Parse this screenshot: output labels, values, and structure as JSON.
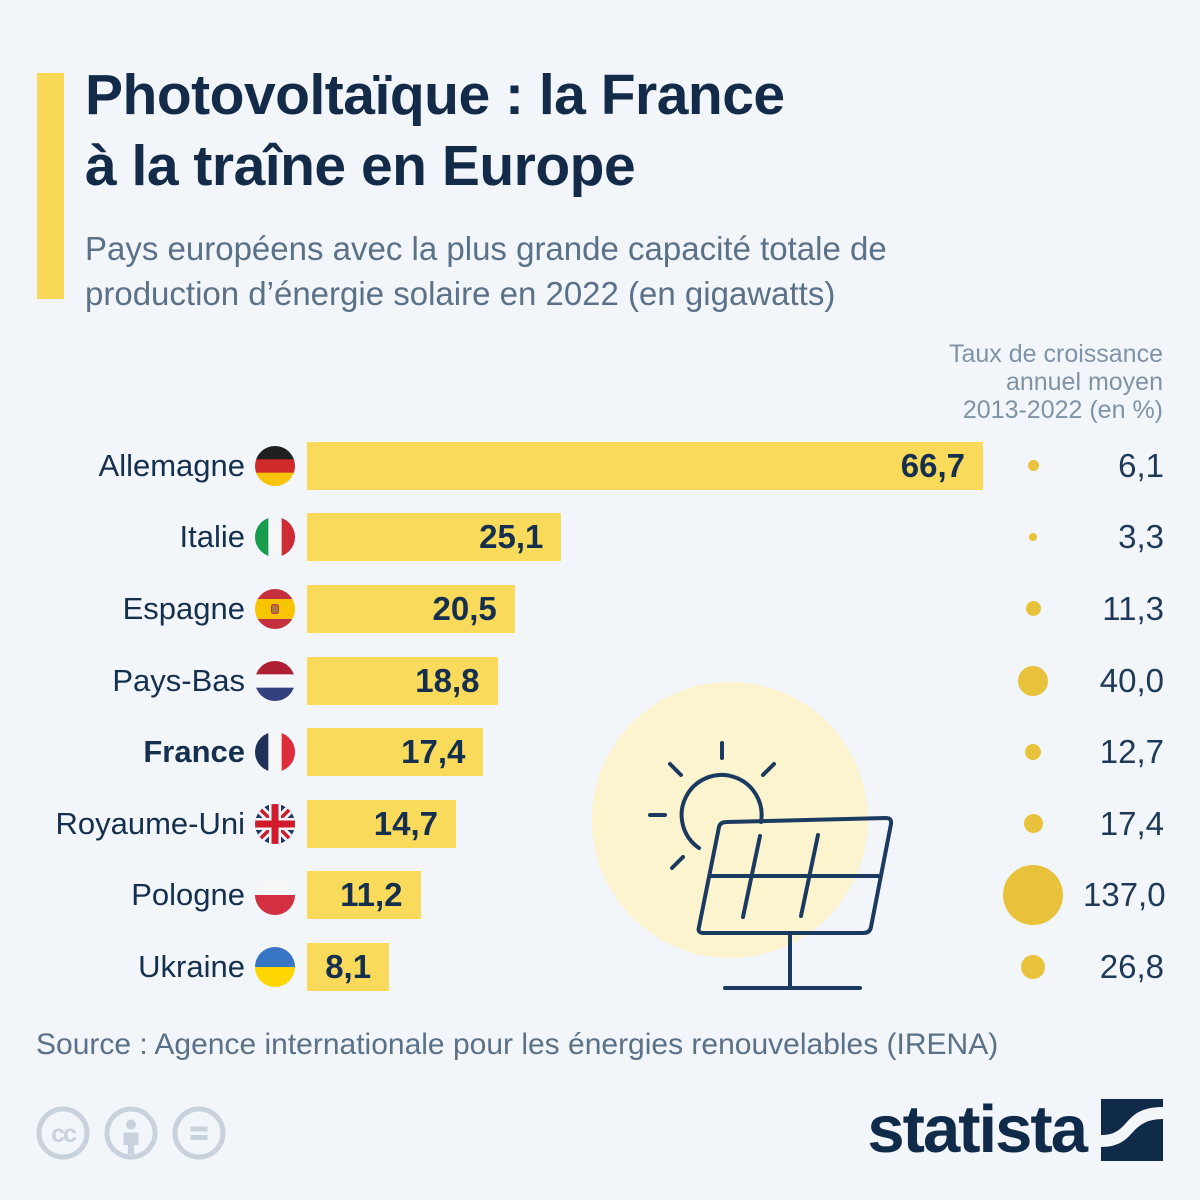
{
  "header": {
    "title": "Photovoltaïque : la France\nà la traîne en Europe",
    "subtitle": "Pays européens avec la plus grande capacité totale de\nproduction d’énergie solaire en 2022 (en gigawatts)",
    "growth_column_header": "Taux de croissance\nannuel moyen\n2013-2022 (en %)"
  },
  "chart": {
    "bar_max": 66.7,
    "bar_color": "#F9DA5B",
    "dot_color": "#E9C23B",
    "rows": [
      {
        "country": "Allemagne",
        "flag": "germany-flag-icon",
        "capacity": 66.7,
        "capacity_label": "66,7",
        "growth": 6.1,
        "growth_label": "6,1",
        "bold": false
      },
      {
        "country": "Italie",
        "flag": "italy-flag-icon",
        "capacity": 25.1,
        "capacity_label": "25,1",
        "growth": 3.3,
        "growth_label": "3,3",
        "bold": false
      },
      {
        "country": "Espagne",
        "flag": "spain-flag-icon",
        "capacity": 20.5,
        "capacity_label": "20,5",
        "growth": 11.3,
        "growth_label": "11,3",
        "bold": false
      },
      {
        "country": "Pays-Bas",
        "flag": "netherlands-flag-icon",
        "capacity": 18.8,
        "capacity_label": "18,8",
        "growth": 40.0,
        "growth_label": "40,0",
        "bold": false
      },
      {
        "country": "France",
        "flag": "france-flag-icon",
        "capacity": 17.4,
        "capacity_label": "17,4",
        "growth": 12.7,
        "growth_label": "12,7",
        "bold": true
      },
      {
        "country": "Royaume-Uni",
        "flag": "united-kingdom-flag-icon",
        "capacity": 14.7,
        "capacity_label": "14,7",
        "growth": 17.4,
        "growth_label": "17,4",
        "bold": false
      },
      {
        "country": "Pologne",
        "flag": "poland-flag-icon",
        "capacity": 11.2,
        "capacity_label": "11,2",
        "growth": 137.0,
        "growth_label": "137,0",
        "bold": false
      },
      {
        "country": "Ukraine",
        "flag": "ukraine-flag-icon",
        "capacity": 8.1,
        "capacity_label": "8,1",
        "growth": 26.8,
        "growth_label": "26,8",
        "bold": false
      }
    ]
  },
  "footer": {
    "source": "Source : Agence internationale pour les énergies renouvelables (IRENA)",
    "brand": "statista",
    "license_icons": [
      "creative-commons",
      "attribution",
      "no-derivatives"
    ]
  },
  "colors": {
    "background": "#F2F5F9",
    "accent_yellow": "#F9D857",
    "bar_yellow": "#F9DA5B",
    "dot_gold": "#E9C23B",
    "title_navy": "#132B49",
    "subtitle_gray": "#5A7188",
    "header_gray": "#8093A6",
    "illustration_circle": "#FCF3CF",
    "illustration_line": "#1B3A5F",
    "license_gray": "#C9D2DC"
  },
  "chart_data": {
    "type": "bar",
    "orientation": "horizontal",
    "title": "Photovoltaïque : la France à la traîne en Europe",
    "subtitle": "Pays européens avec la plus grande capacité totale de production d’énergie solaire en 2022 (en gigawatts)",
    "categories": [
      "Allemagne",
      "Italie",
      "Espagne",
      "Pays-Bas",
      "France",
      "Royaume-Uni",
      "Pologne",
      "Ukraine"
    ],
    "series": [
      {
        "name": "Capacité totale de production d’énergie solaire 2022 (en gigawatts)",
        "values": [
          66.7,
          25.1,
          20.5,
          18.8,
          17.4,
          14.7,
          11.2,
          8.1
        ]
      },
      {
        "name": "Taux de croissance annuel moyen 2013-2022 (en %)",
        "values": [
          6.1,
          3.3,
          11.3,
          40.0,
          12.7,
          17.4,
          137.0,
          26.8
        ]
      }
    ],
    "xlim": [
      0,
      66.7
    ],
    "grid": false,
    "value_labels": "inside-end",
    "bar_color": "#F9DA5B",
    "bubble_color": "#E9C23B",
    "source": "Source : Agence internationale pour les énergies renouvelables (IRENA)"
  }
}
